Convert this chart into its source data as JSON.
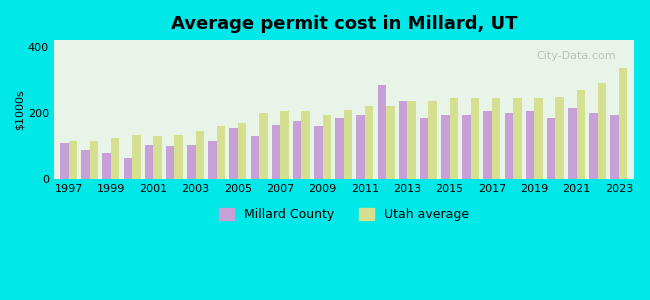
{
  "title": "Average permit cost in Millard, UT",
  "ylabel": "$1000s",
  "ylim": [
    0,
    420
  ],
  "yticks": [
    0,
    200,
    400
  ],
  "background_color": "#00e8e8",
  "plot_bg_start": "#f0f8e8",
  "plot_bg_end": "#ffffff",
  "millard_color": "#c8a0d8",
  "utah_color": "#d4e090",
  "legend_millard": "Millard County",
  "legend_utah": "Utah average",
  "years": [
    1997,
    1998,
    1999,
    2000,
    2001,
    2002,
    2003,
    2004,
    2005,
    2006,
    2007,
    2008,
    2009,
    2010,
    2011,
    2012,
    2013,
    2014,
    2015,
    2016,
    2017,
    2018,
    2019,
    2020,
    2021,
    2022,
    2023
  ],
  "millard_values": [
    110,
    90,
    80,
    65,
    105,
    100,
    105,
    115,
    155,
    130,
    165,
    175,
    160,
    185,
    195,
    285,
    235,
    185,
    195,
    195,
    205,
    200,
    205,
    185,
    215,
    200,
    195
  ],
  "utah_values": [
    115,
    115,
    125,
    135,
    130,
    135,
    145,
    160,
    170,
    200,
    205,
    205,
    195,
    210,
    220,
    220,
    235,
    235,
    245,
    245,
    245,
    245,
    245,
    250,
    270,
    290,
    335
  ]
}
